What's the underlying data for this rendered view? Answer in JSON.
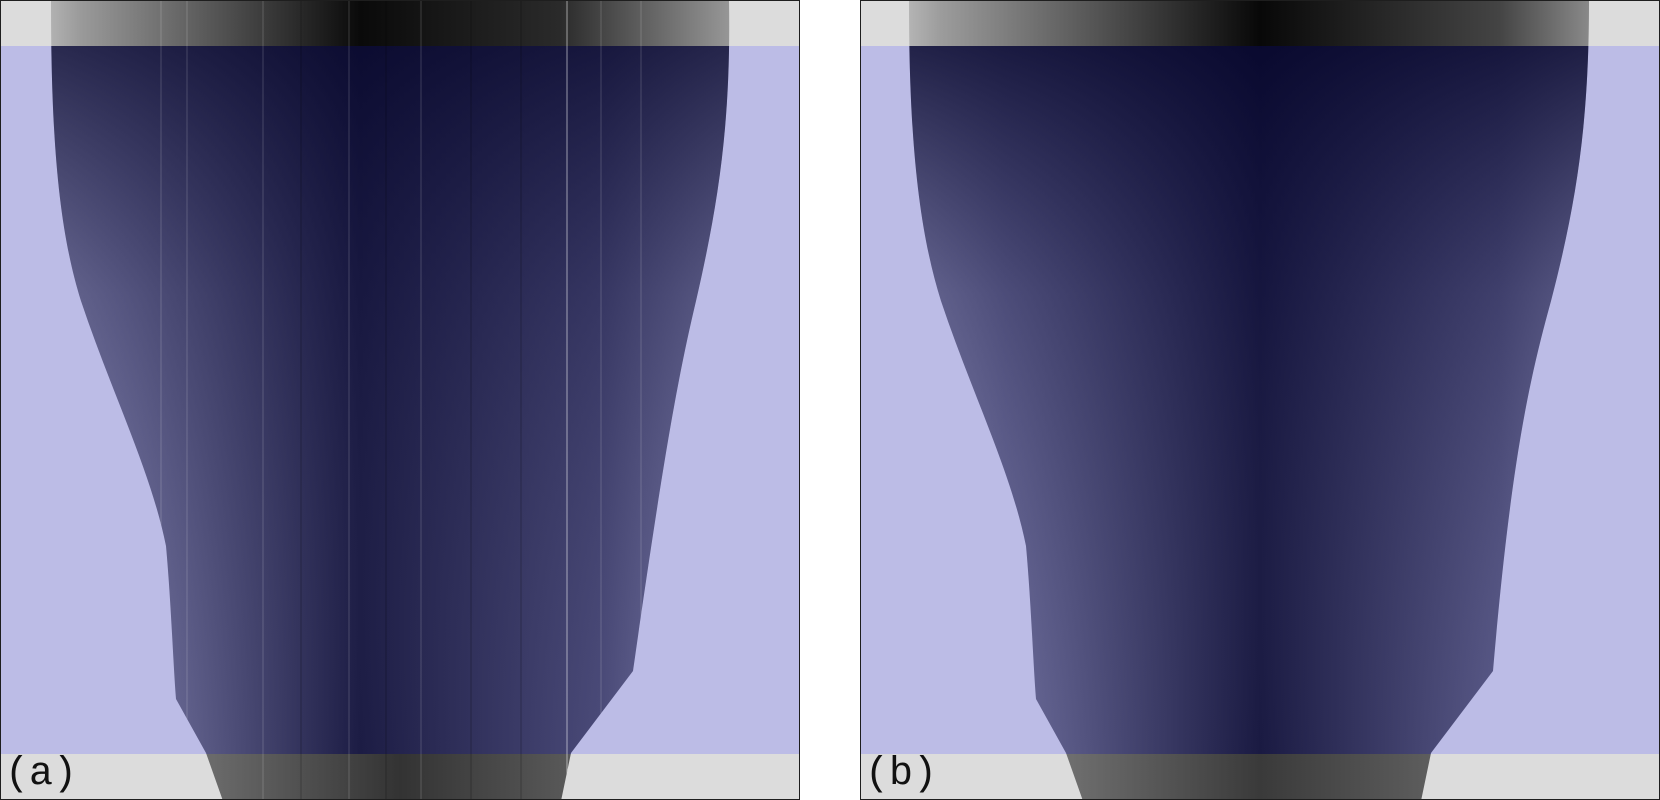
{
  "figure": {
    "panels": [
      {
        "id": "a",
        "label": "(a)",
        "texture": "streaked"
      },
      {
        "id": "b",
        "label": "(b)",
        "texture": "smooth"
      }
    ],
    "colors": {
      "background_band": "#dcdcdc",
      "overlay": "#bcbce6",
      "core_dark": "#08082c",
      "core_mid": "#3a3a62",
      "frame": "#1e1e1e"
    }
  }
}
